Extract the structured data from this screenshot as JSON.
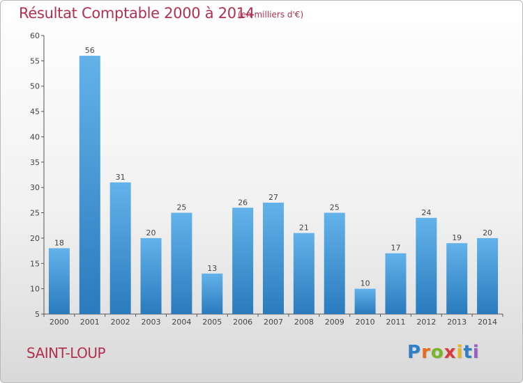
{
  "header": {
    "title": "Résultat Comptable 2000 à 2014",
    "subtitle": "(en milliers d'€)"
  },
  "footer": {
    "commune": "SAINT-LOUP",
    "logo": {
      "letters": [
        "P",
        "r",
        "o",
        "x",
        "i",
        "t",
        "i"
      ],
      "colors": [
        "#2f7fc6",
        "#e86a1c",
        "#7ab527",
        "#d93a3a",
        "#e8b51c",
        "#2f7fc6",
        "#9b5cc4"
      ]
    }
  },
  "chart_data": {
    "type": "bar",
    "categories": [
      "2000",
      "2001",
      "2002",
      "2003",
      "2004",
      "2005",
      "2006",
      "2007",
      "2008",
      "2009",
      "2010",
      "2011",
      "2012",
      "2013",
      "2014"
    ],
    "values": [
      18,
      56,
      31,
      20,
      25,
      13,
      26,
      27,
      21,
      25,
      10,
      17,
      24,
      19,
      20
    ],
    "ylim": [
      5,
      60
    ],
    "yticks": [
      5,
      10,
      15,
      20,
      25,
      30,
      35,
      40,
      45,
      50,
      55,
      60
    ],
    "grid": false,
    "colors": {
      "bar_light": "#63b2ea",
      "bar_dark": "#2a7bbd",
      "axis": "#555555"
    }
  }
}
